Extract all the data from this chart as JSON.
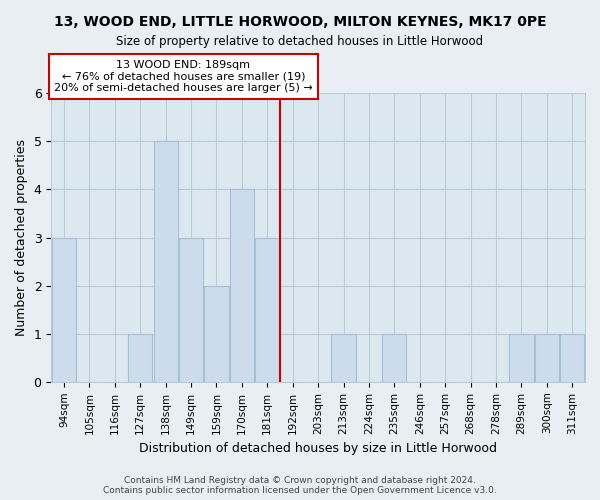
{
  "title": "13, WOOD END, LITTLE HORWOOD, MILTON KEYNES, MK17 0PE",
  "subtitle": "Size of property relative to detached houses in Little Horwood",
  "xlabel": "Distribution of detached houses by size in Little Horwood",
  "ylabel": "Number of detached properties",
  "bin_labels": [
    "94sqm",
    "105sqm",
    "116sqm",
    "127sqm",
    "138sqm",
    "149sqm",
    "159sqm",
    "170sqm",
    "181sqm",
    "192sqm",
    "203sqm",
    "213sqm",
    "224sqm",
    "235sqm",
    "246sqm",
    "257sqm",
    "268sqm",
    "278sqm",
    "289sqm",
    "300sqm",
    "311sqm"
  ],
  "bar_heights": [
    3,
    0,
    0,
    1,
    5,
    3,
    2,
    4,
    3,
    0,
    0,
    1,
    0,
    1,
    0,
    0,
    0,
    0,
    1,
    1,
    1
  ],
  "bar_color": "#ccdcec",
  "bar_edge_color": "#a8c0d4",
  "vline_x": 8.5,
  "vline_color": "#cc0000",
  "annotation_text": "13 WOOD END: 189sqm\n← 76% of detached houses are smaller (19)\n20% of semi-detached houses are larger (5) →",
  "annotation_box_edgecolor": "#cc0000",
  "annotation_box_facecolor": "#ffffff",
  "ylim": [
    0,
    6
  ],
  "yticks": [
    0,
    1,
    2,
    3,
    4,
    5,
    6
  ],
  "footer_text": "Contains HM Land Registry data © Crown copyright and database right 2024.\nContains public sector information licensed under the Open Government Licence v3.0.",
  "bg_color": "#e8eef4",
  "plot_bg_color": "#dce8f0",
  "grid_color": "#b8ccd8"
}
